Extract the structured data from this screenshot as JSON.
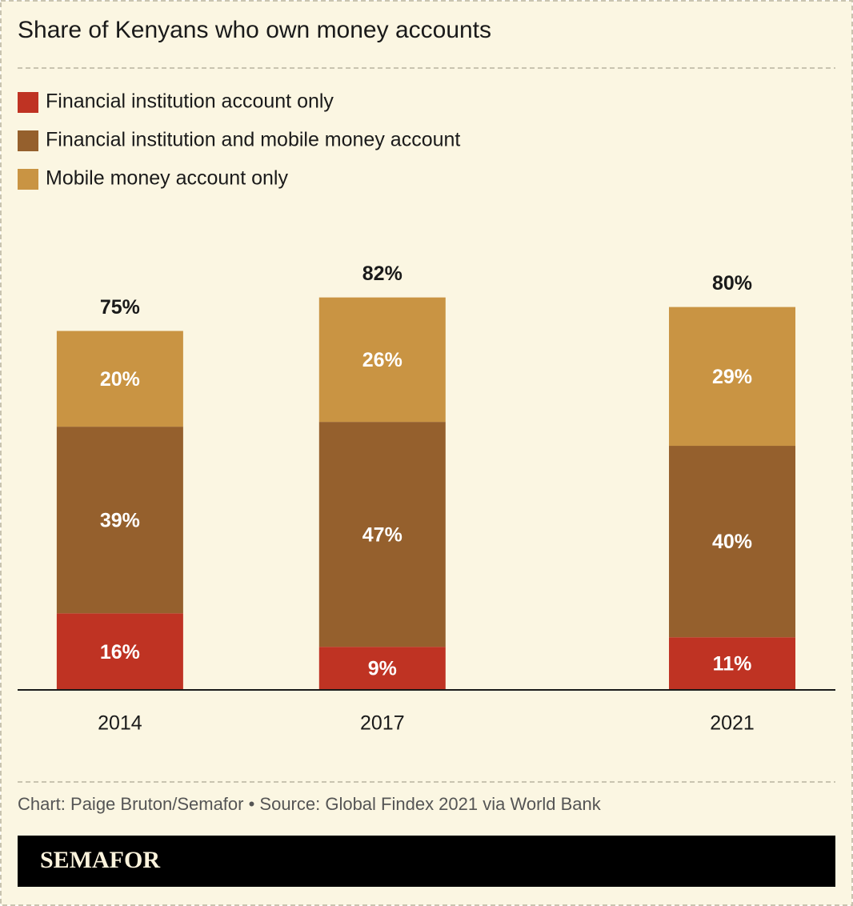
{
  "chart_data": {
    "type": "stacked_bar",
    "title": "Share of Kenyans who own money accounts",
    "x": [
      2014,
      2017,
      2021
    ],
    "xlim": [
      2012.83,
      2022.18
    ],
    "xticks": [
      2014,
      2017,
      2021
    ],
    "series": [
      {
        "name": "Financial institution account only",
        "color": "#bf3323",
        "values": [
          16,
          9,
          11
        ],
        "value_labels": [
          "16%",
          "9%",
          "11%"
        ]
      },
      {
        "name": "Financial institution and mobile money account",
        "color": "#95602d",
        "values": [
          39,
          47,
          40
        ],
        "value_labels": [
          "39%",
          "47%",
          "40%"
        ]
      },
      {
        "name": "Mobile money account only",
        "color": "#c99443",
        "values": [
          20,
          26,
          29
        ],
        "value_labels": [
          "20%",
          "26%",
          "29%"
        ]
      }
    ],
    "totals": [
      75,
      82,
      80
    ],
    "total_labels": [
      "75%",
      "82%",
      "80%"
    ],
    "source": "Chart: Paige Bruton/Semafor • Source: Global Findex 2021 via World Bank",
    "brand": "SEMAFOR"
  }
}
